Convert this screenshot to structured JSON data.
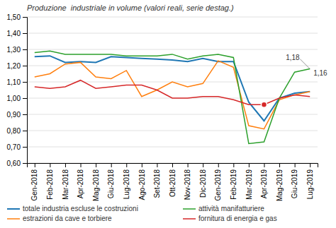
{
  "chart_data": {
    "type": "line",
    "subtitle": "Produzione  industriale in volume (valori reali, serie destag.)",
    "categories": [
      "Gen-2018",
      "Feb-2018",
      "Mar-2018",
      "Apr-2018",
      "Mag-2018",
      "Giu-2018",
      "Lug-2018",
      "Ago-2018",
      "Set-2018",
      "Ott-2018",
      "Nov-2018",
      "Dic-2018",
      "Gen-2019",
      "Feb-2019",
      "Mar-2019",
      "Apr-2019",
      "Mag-2019",
      "Giu-2019",
      "Lug-2019"
    ],
    "series": [
      {
        "name": "totale industria escluse le costruzioni",
        "values": [
          1.255,
          1.26,
          1.22,
          1.225,
          1.22,
          1.255,
          1.25,
          1.245,
          1.24,
          1.235,
          1.225,
          1.245,
          1.225,
          1.225,
          0.975,
          0.86,
          1.0,
          1.03,
          1.04
        ]
      },
      {
        "name": "estrazioni da cave e torbiere",
        "values": [
          1.13,
          1.15,
          1.21,
          1.22,
          1.13,
          1.12,
          1.17,
          1.01,
          1.05,
          1.1,
          1.07,
          1.09,
          1.23,
          1.19,
          0.83,
          0.81,
          0.99,
          1.02,
          1.04
        ]
      },
      {
        "name": "attività manifatturiere",
        "values": [
          1.28,
          1.29,
          1.27,
          1.27,
          1.27,
          1.27,
          1.26,
          1.26,
          1.26,
          1.27,
          1.24,
          1.26,
          1.27,
          1.25,
          0.72,
          0.73,
          1.0,
          1.16,
          1.18
        ]
      },
      {
        "name": "fornitura di energia e gas",
        "values": [
          1.07,
          1.06,
          1.07,
          1.11,
          1.06,
          1.07,
          1.08,
          1.08,
          1.05,
          1.0,
          1.0,
          1.01,
          1.01,
          0.99,
          0.96,
          0.96,
          1.0,
          1.02,
          1.01
        ]
      }
    ],
    "ylim": [
      0.6,
      1.5
    ],
    "yticks": [
      {
        "value": 0.6,
        "label": "0,60"
      },
      {
        "value": 0.7,
        "label": "0,70"
      },
      {
        "value": 0.8,
        "label": "0,80"
      },
      {
        "value": 0.9,
        "label": "0,90"
      },
      {
        "value": 1.0,
        "label": "1,00"
      },
      {
        "value": 1.1,
        "label": "1,10"
      },
      {
        "value": 1.2,
        "label": "1,20"
      },
      {
        "value": 1.3,
        "label": "1,30"
      },
      {
        "value": 1.4,
        "label": "1,40"
      },
      {
        "value": 1.5,
        "label": "1,50"
      }
    ],
    "grid": true,
    "legend": "bottom",
    "annotations": [
      {
        "text": "1,18",
        "x": "Lug-2019",
        "series": "attività manifatturiere"
      },
      {
        "text": "1,16",
        "x": "Lug-2019",
        "y": 1.155
      },
      {
        "x": "Apr-2019",
        "series": "fornitura di energia e gas",
        "marker": "circle"
      }
    ]
  }
}
